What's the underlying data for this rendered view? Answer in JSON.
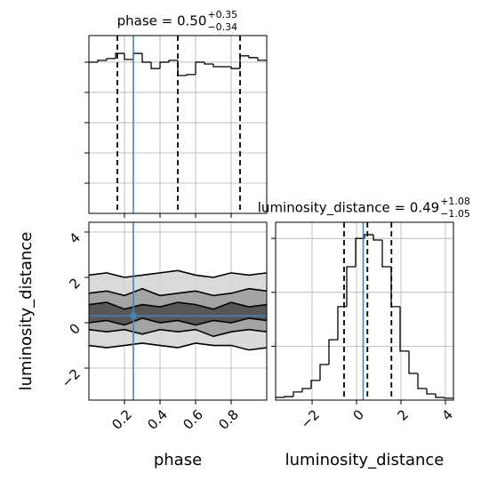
{
  "chart_data": [
    {
      "type": "histogram",
      "title": "phase = 0.50",
      "title_plus": "+0.35",
      "title_minus": "−0.34",
      "bins": [
        0,
        0.05,
        0.1,
        0.15,
        0.2,
        0.25,
        0.3,
        0.35,
        0.4,
        0.45,
        0.5,
        0.55,
        0.6,
        0.65,
        0.7,
        0.75,
        0.8,
        0.85,
        0.9,
        0.95,
        1
      ],
      "counts": [
        500,
        506,
        512,
        529,
        509,
        529,
        500,
        479,
        500,
        506,
        456,
        459,
        500,
        494,
        485,
        485,
        479,
        521,
        515,
        506
      ],
      "quantiles": [
        0.16,
        0.5,
        0.85
      ],
      "truth": 0.25,
      "color": "#000000",
      "truth_color": "#4682b4",
      "xlim": [
        0,
        1
      ],
      "xticks": [
        0.2,
        0.4,
        0.6,
        0.8
      ],
      "ylim": [
        0,
        588
      ],
      "yticks": [
        100,
        200,
        300,
        400,
        500
      ],
      "grid": true
    },
    {
      "type": "contour",
      "xlabel": "phase",
      "ylabel": "luminosity_distance",
      "x": [
        0,
        0.1,
        0.2,
        0.3,
        0.4,
        0.5,
        0.6,
        0.7,
        0.8,
        0.9,
        1
      ],
      "levels": [
        {
          "color": "#d4d4d4",
          "upper": [
            2.1,
            2.2,
            2.0,
            2.1,
            2.2,
            2.3,
            2.1,
            2.0,
            2.2,
            2.1,
            2.2
          ],
          "lower": [
            -1.0,
            -1.1,
            -1.0,
            -0.9,
            -1.0,
            -1.1,
            -0.9,
            -1.0,
            -1.0,
            -1.2,
            -1.1
          ]
        },
        {
          "color": "#9a9a9a",
          "upper": [
            1.3,
            1.4,
            1.2,
            1.5,
            1.2,
            1.3,
            1.4,
            1.2,
            1.3,
            1.5,
            1.4
          ],
          "lower": [
            -0.3,
            -0.4,
            -0.3,
            -0.5,
            -0.3,
            -0.4,
            -0.3,
            -0.6,
            -0.4,
            -0.3,
            -0.4
          ]
        },
        {
          "color": "#4a4a4a",
          "upper": [
            0.8,
            0.9,
            0.6,
            0.8,
            0.7,
            0.9,
            0.8,
            0.6,
            0.9,
            0.7,
            0.8
          ],
          "lower": [
            0.0,
            0.1,
            -0.1,
            0.2,
            0.0,
            0.1,
            -0.1,
            0.1,
            0.0,
            0.2,
            0.1
          ]
        }
      ],
      "truth": {
        "x": 0.25,
        "y": 0.3
      },
      "truth_color": "#4682b4",
      "xlim": [
        0,
        1
      ],
      "xticks": [
        0.2,
        0.4,
        0.6,
        0.8
      ],
      "ylim": [
        -3.41,
        4.43
      ],
      "yticks": [
        {
          "value": -2,
          "label": "−2"
        },
        0,
        2,
        4
      ],
      "grid": true
    },
    {
      "type": "histogram",
      "title": "luminosity_distance = 0.49",
      "title_plus": "+1.08",
      "title_minus": "−1.05",
      "xlabel": "luminosity_distance",
      "bins": [
        -3.64,
        -3.24,
        -2.84,
        -2.44,
        -2.04,
        -1.64,
        -1.24,
        -0.84,
        -0.44,
        -0.04,
        0.36,
        0.76,
        1.16,
        1.56,
        1.96,
        2.36,
        2.76,
        3.16,
        3.56,
        3.96,
        4.36
      ],
      "counts": [
        0.01,
        0.013,
        0.03,
        0.043,
        0.073,
        0.132,
        0.224,
        0.347,
        0.495,
        0.6,
        0.614,
        0.594,
        0.495,
        0.347,
        0.182,
        0.099,
        0.043,
        0.023,
        0.01,
        0.007
      ],
      "quantiles": [
        -0.56,
        0.49,
        1.57
      ],
      "truth": 0.3,
      "color": "#000000",
      "truth_color": "#4682b4",
      "xlim": [
        -3.64,
        4.36
      ],
      "xticks": [
        {
          "value": -2,
          "label": "−2"
        },
        0,
        2,
        4
      ],
      "ylim": [
        0,
        0.66
      ],
      "yticks": [
        0.2,
        0.4,
        0.6
      ],
      "grid": true
    }
  ]
}
